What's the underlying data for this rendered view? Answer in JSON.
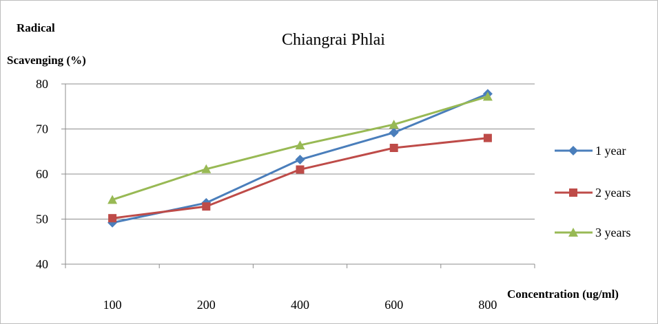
{
  "chart_data": {
    "type": "line",
    "title": "Chiangrai Phlai",
    "ylabel_line1": "Radical",
    "ylabel_line2": "Scavenging (%)",
    "xlabel": "Concentration (ug/ml)",
    "categories": [
      "100",
      "200",
      "400",
      "600",
      "800"
    ],
    "ylim": [
      40,
      80
    ],
    "yticks": [
      40,
      50,
      60,
      70,
      80
    ],
    "grid": true,
    "legend_position": "right",
    "series": [
      {
        "name": "1 year",
        "values": [
          49.2,
          53.6,
          63.2,
          69.2,
          77.8
        ],
        "color": "#4a7ebb",
        "marker": "diamond"
      },
      {
        "name": "2 years",
        "values": [
          50.2,
          52.8,
          61.0,
          65.8,
          68.0
        ],
        "color": "#be4b48",
        "marker": "square"
      },
      {
        "name": "3 years",
        "values": [
          54.3,
          61.1,
          66.4,
          71.0,
          77.2
        ],
        "color": "#98b954",
        "marker": "triangle"
      }
    ]
  }
}
